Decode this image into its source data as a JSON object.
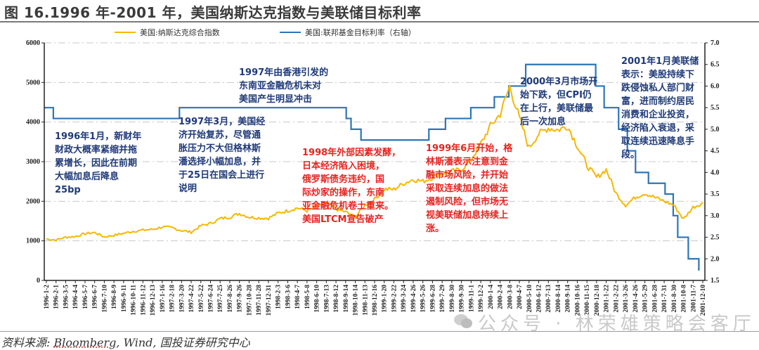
{
  "figure": {
    "title": "图 16.1996 年-2001 年，美国纳斯达克指数与美联储目标利率",
    "source_prefix": "资料来源: ",
    "source_brand": "Bloomberg",
    "source_rest": ", Wind, 国投证券研究中心",
    "watermark": "公众号 · 林荣雄策略会客厅"
  },
  "legend": {
    "series1": "美国:纳斯达克综合指数",
    "series2": "美国:联邦基金目标利率（右轴）"
  },
  "colors": {
    "nasdaq": "#f5b800",
    "fed_rate": "#2e75b6",
    "annotation_blue": "#1f3a78",
    "annotation_red": "#e8231f",
    "gridline": "#c8c8c8"
  },
  "annotations": [
    {
      "id": "a1996",
      "color": "blue",
      "text": "1996年1月，新财年\n财政大概率紧缩并拖\n累增长，因此在前期\n大幅加息后降息\n25bp"
    },
    {
      "id": "a1997crisis",
      "color": "blue",
      "text": "1997年由香港引发的\n东南亚金融危机未对\n美国产生明显冲击"
    },
    {
      "id": "a1997mar",
      "color": "blue",
      "text": "1997年3月，美国经\n济开始复苏，尽管通\n胀压力不大但格林斯\n潘选择小幅加息，并\n于25日在国会上进行\n说明"
    },
    {
      "id": "a1998",
      "color": "red",
      "text": "1998年外部因素发酵，\n日本经济陷入困境，\n俄罗斯债务违约，国\n际炒家的操作，东南\n亚金融危机卷土重来。\n美国LTCM宣告破产"
    },
    {
      "id": "a1999",
      "color": "red",
      "text": "1999年6月开始，格\n林斯潘表示注意到金\n融市场风险，并开始\n采取连续加息的做法\n遏制风险，但市场无\n视美联储加息持续上\n涨。"
    },
    {
      "id": "a2000",
      "color": "blue",
      "text": "2000年3月市场开\n始下跌，但CPI仍\n在上行，美联储最\n后一次加息"
    },
    {
      "id": "a2001",
      "color": "blue",
      "text": "2001年1月美联储\n表示：美股持续下\n跌侵蚀私人部门财\n富，进而制约居民\n消费和企业投资，\n经济陷入衰退，采\n取连续迅速降息手\n段。"
    }
  ],
  "chart_data": {
    "type": "line",
    "title": "1996年-2001年，美国纳斯达克指数与美联储目标利率",
    "xlabel": "",
    "ylabel": "",
    "ylim": [
      0,
      6000
    ],
    "y2lim": [
      1.5,
      7.0
    ],
    "yticks": [
      0,
      1000,
      2000,
      3000,
      4000,
      5000,
      6000
    ],
    "y2ticks": [
      "1.5",
      "2.0",
      "2.5",
      "3.0",
      "3.5",
      "4.0",
      "4.5",
      "5.0",
      "5.5",
      "6.0",
      "6.5",
      "7.0"
    ],
    "grid": "horizontal dashed",
    "legend_position": "top",
    "x_tick_labels": [
      "1996-1-2",
      "1996-2-1",
      "1996-3-5",
      "1996-4-4",
      "1996-5-7",
      "1996-6-7",
      "1996-7-10",
      "1996-8-9",
      "1996-9-11",
      "1996-10-11",
      "1996-11-12",
      "1996-12-13",
      "1997-1-16",
      "1997-2-18",
      "1997-3-20",
      "1997-4-22",
      "1997-5-22",
      "1997-6-24",
      "1997-7-25",
      "1997-8-26",
      "1997-9-26",
      "1997-10-28",
      "1997-11-28",
      "1997-12-31",
      "1998-2-3",
      "1998-3-6",
      "1998-4-7",
      "1998-5-8",
      "1998-6-10",
      "1998-7-13",
      "1998-8-12",
      "1998-9-14",
      "1998-10-14",
      "1998-11-13",
      "1998-12-16",
      "1999-1-20",
      "1999-2-22",
      "1999-3-24",
      "1999-4-26",
      "1999-5-26",
      "1999-6-28",
      "1999-7-29",
      "1999-8-30",
      "1999-9-30",
      "1999-11-1",
      "1999-12-2",
      "2000-1-4",
      "2000-2-4",
      "2000-3-8",
      "2000-4-7",
      "2000-5-10",
      "2000-6-12",
      "2000-7-13",
      "2000-8-14",
      "2000-9-14",
      "2000-10-16",
      "2000-11-15",
      "2000-12-18",
      "2001-1-22",
      "2001-2-22",
      "2001-3-26",
      "2001-4-26",
      "2001-5-29",
      "2001-6-28",
      "2001-7-31",
      "2001-8-30",
      "2001-10-8",
      "2001-11-7",
      "2001-12-10"
    ],
    "series": [
      {
        "name": "美国:纳斯达克综合指数",
        "axis": "left",
        "x": [
          "1996-1-2",
          "1996-2-1",
          "1996-3-5",
          "1996-4-4",
          "1996-5-7",
          "1996-6-7",
          "1996-7-10",
          "1996-8-9",
          "1996-9-11",
          "1996-10-11",
          "1996-11-12",
          "1996-12-13",
          "1997-1-16",
          "1997-2-18",
          "1997-3-20",
          "1997-4-22",
          "1997-5-22",
          "1997-6-24",
          "1997-7-25",
          "1997-8-26",
          "1997-9-26",
          "1997-10-28",
          "1997-11-28",
          "1997-12-31",
          "1998-2-3",
          "1998-3-6",
          "1998-4-7",
          "1998-5-8",
          "1998-6-10",
          "1998-7-13",
          "1998-8-12",
          "1998-9-14",
          "1998-10-14",
          "1998-11-13",
          "1998-12-16",
          "1999-1-20",
          "1999-2-22",
          "1999-3-24",
          "1999-4-26",
          "1999-5-26",
          "1999-6-28",
          "1999-7-29",
          "1999-8-30",
          "1999-9-30",
          "1999-11-1",
          "1999-12-2",
          "2000-1-4",
          "2000-2-4",
          "2000-3-8",
          "2000-4-7",
          "2000-5-10",
          "2000-6-12",
          "2000-7-13",
          "2000-8-14",
          "2000-9-14",
          "2000-10-16",
          "2000-11-15",
          "2000-12-18",
          "2001-1-22",
          "2001-2-22",
          "2001-3-26",
          "2001-4-26",
          "2001-5-29",
          "2001-6-28",
          "2001-7-31",
          "2001-8-30",
          "2001-10-8",
          "2001-11-7",
          "2001-12-10"
        ],
        "values": [
          1050,
          1020,
          1090,
          1110,
          1180,
          1210,
          1100,
          1140,
          1190,
          1240,
          1270,
          1290,
          1350,
          1330,
          1260,
          1220,
          1380,
          1440,
          1560,
          1600,
          1690,
          1600,
          1580,
          1570,
          1700,
          1760,
          1830,
          1760,
          1860,
          1950,
          1800,
          1730,
          1600,
          1900,
          2050,
          2300,
          2300,
          2450,
          2550,
          2500,
          2600,
          2700,
          2750,
          2800,
          3050,
          3450,
          3900,
          4200,
          4900,
          4100,
          3350,
          3700,
          3850,
          3800,
          3900,
          3400,
          2900,
          2600,
          2800,
          2200,
          1900,
          2100,
          2200,
          2100,
          2000,
          1900,
          1550,
          1850,
          1950
        ]
      },
      {
        "name": "美国:联邦基金目标利率（右轴）",
        "axis": "right",
        "type": "step",
        "points": [
          {
            "date": "1996-1-2",
            "value": 5.5
          },
          {
            "date": "1996-2-1",
            "value": 5.25
          },
          {
            "date": "1997-3-25",
            "value": 5.5
          },
          {
            "date": "1998-9-29",
            "value": 5.25
          },
          {
            "date": "1998-10-15",
            "value": 5.0
          },
          {
            "date": "1998-11-17",
            "value": 4.75
          },
          {
            "date": "1999-6-30",
            "value": 5.0
          },
          {
            "date": "1999-8-24",
            "value": 5.25
          },
          {
            "date": "1999-11-16",
            "value": 5.5
          },
          {
            "date": "2000-2-2",
            "value": 5.75
          },
          {
            "date": "2000-3-21",
            "value": 6.0
          },
          {
            "date": "2000-5-16",
            "value": 6.5
          },
          {
            "date": "2001-1-3",
            "value": 6.0
          },
          {
            "date": "2001-1-31",
            "value": 5.5
          },
          {
            "date": "2001-3-20",
            "value": 5.0
          },
          {
            "date": "2001-4-18",
            "value": 4.5
          },
          {
            "date": "2001-5-15",
            "value": 4.0
          },
          {
            "date": "2001-6-27",
            "value": 3.75
          },
          {
            "date": "2001-8-21",
            "value": 3.5
          },
          {
            "date": "2001-9-17",
            "value": 3.0
          },
          {
            "date": "2001-10-2",
            "value": 2.5
          },
          {
            "date": "2001-11-6",
            "value": 2.0
          },
          {
            "date": "2001-12-11",
            "value": 1.75
          }
        ]
      }
    ]
  }
}
